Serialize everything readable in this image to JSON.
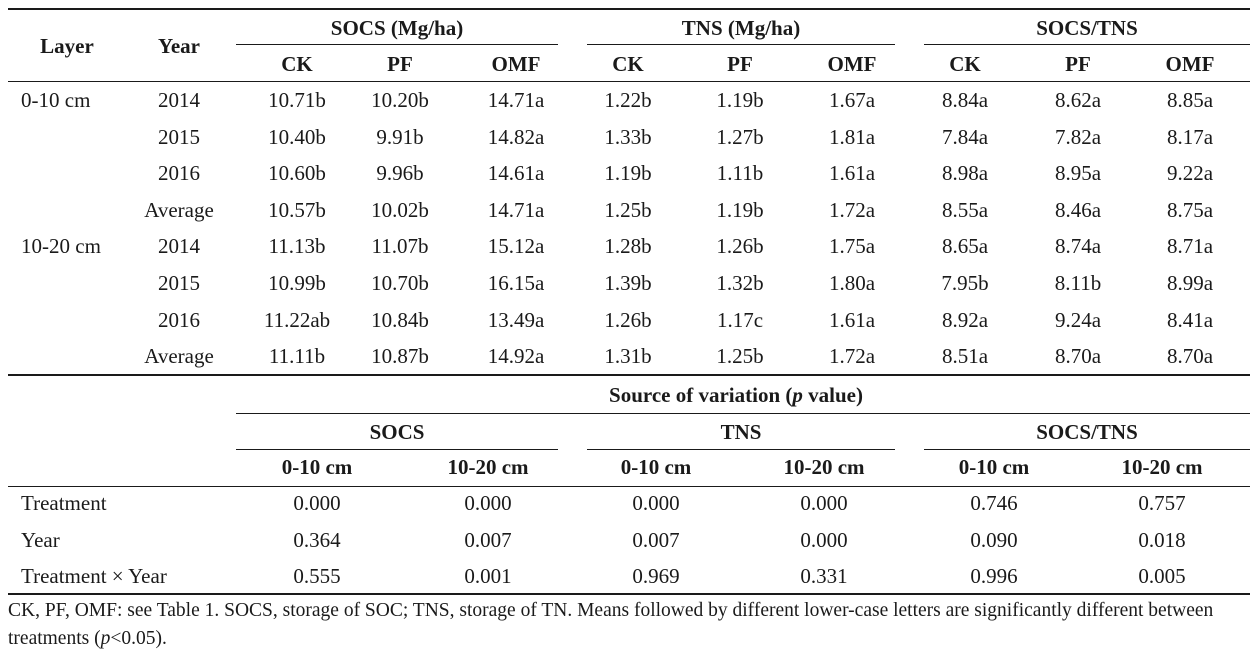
{
  "table1": {
    "headers": {
      "layer": "Layer",
      "year": "Year",
      "groups": [
        "SOCS (Mg/ha)",
        "TNS (Mg/ha)",
        "SOCS/TNS"
      ],
      "subcols": [
        "CK",
        "PF",
        "OMF"
      ]
    },
    "layers": [
      {
        "label": "0-10 cm",
        "rows": [
          {
            "year": "2014",
            "values": [
              "10.71b",
              "10.20b",
              "14.71a",
              "1.22b",
              "1.19b",
              "1.67a",
              "8.84a",
              "8.62a",
              "8.85a"
            ]
          },
          {
            "year": "2015",
            "values": [
              "10.40b",
              "9.91b",
              "14.82a",
              "1.33b",
              "1.27b",
              "1.81a",
              "7.84a",
              "7.82a",
              "8.17a"
            ]
          },
          {
            "year": "2016",
            "values": [
              "10.60b",
              "9.96b",
              "14.61a",
              "1.19b",
              "1.11b",
              "1.61a",
              "8.98a",
              "8.95a",
              "9.22a"
            ]
          },
          {
            "year": "Average",
            "values": [
              "10.57b",
              "10.02b",
              "14.71a",
              "1.25b",
              "1.19b",
              "1.72a",
              "8.55a",
              "8.46a",
              "8.75a"
            ]
          }
        ]
      },
      {
        "label": "10-20 cm",
        "rows": [
          {
            "year": "2014",
            "values": [
              "11.13b",
              "11.07b",
              "15.12a",
              "1.28b",
              "1.26b",
              "1.75a",
              "8.65a",
              "8.74a",
              "8.71a"
            ]
          },
          {
            "year": "2015",
            "values": [
              "10.99b",
              "10.70b",
              "16.15a",
              "1.39b",
              "1.32b",
              "1.80a",
              "7.95b",
              "8.11b",
              "8.99a"
            ]
          },
          {
            "year": "2016",
            "values": [
              "11.22ab",
              "10.84b",
              "13.49a",
              "1.26b",
              "1.17c",
              "1.61a",
              "8.92a",
              "9.24a",
              "8.41a"
            ]
          },
          {
            "year": "Average",
            "values": [
              "11.11b",
              "10.87b",
              "14.92a",
              "1.31b",
              "1.25b",
              "1.72a",
              "8.51a",
              "8.70a",
              "8.70a"
            ]
          }
        ]
      }
    ]
  },
  "table2": {
    "title_prefix": "Source of variation (",
    "title_p": "p",
    "title_suffix": " value)",
    "groups": [
      "SOCS",
      "TNS",
      "SOCS/TNS"
    ],
    "subcols": [
      "0-10 cm",
      "10-20 cm"
    ],
    "rows": [
      {
        "label": "Treatment",
        "values": [
          "0.000",
          "0.000",
          "0.000",
          "0.000",
          "0.746",
          "0.757"
        ]
      },
      {
        "label": "Year",
        "values": [
          "0.364",
          "0.007",
          "0.007",
          "0.000",
          "0.090",
          "0.018"
        ]
      },
      {
        "label": "Treatment × Year",
        "values": [
          "0.555",
          "0.001",
          "0.969",
          "0.331",
          "0.996",
          "0.005"
        ]
      }
    ]
  },
  "footnote": {
    "part1": "CK, PF, OMF: see Table 1. SOCS, storage of SOC; TNS, storage of TN. Means followed by different lower-case letters are significantly different between treatments (",
    "p": "p",
    "part2": "<0.05)."
  }
}
